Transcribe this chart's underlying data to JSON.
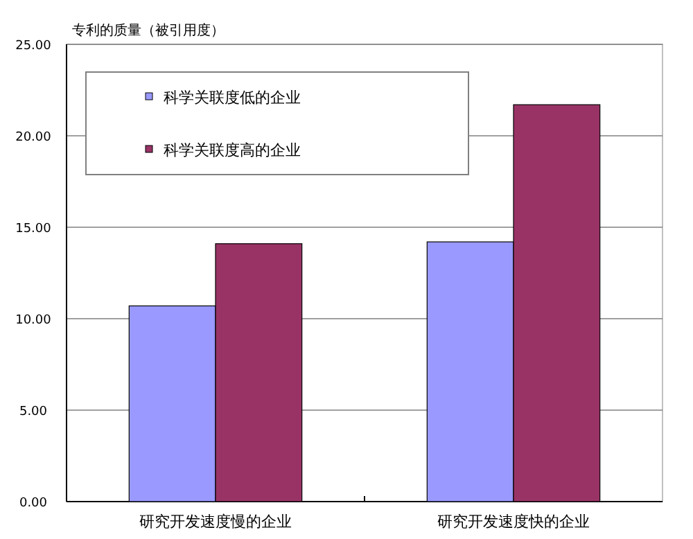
{
  "chart_data": {
    "type": "bar",
    "ylabel": "专利的质量（被引用度）",
    "categories": [
      "研究开发速度慢的企业",
      "研究开发速度快的企业"
    ],
    "series": [
      {
        "name": "科学关联度低的企业",
        "color": "#9999ff",
        "values": [
          10.7,
          14.2
        ]
      },
      {
        "name": "科学关联度高的企业",
        "color": "#993366",
        "values": [
          14.1,
          21.7
        ]
      }
    ],
    "ylim": [
      0,
      25
    ],
    "yticks": [
      {
        "value": 0,
        "label": "0.00"
      },
      {
        "value": 5,
        "label": "5.00"
      },
      {
        "value": 10,
        "label": "10.00"
      },
      {
        "value": 15,
        "label": "15.00"
      },
      {
        "value": 20,
        "label": "20.00"
      },
      {
        "value": 25,
        "label": "25.00"
      }
    ],
    "grid": "y",
    "legend": "top left"
  }
}
